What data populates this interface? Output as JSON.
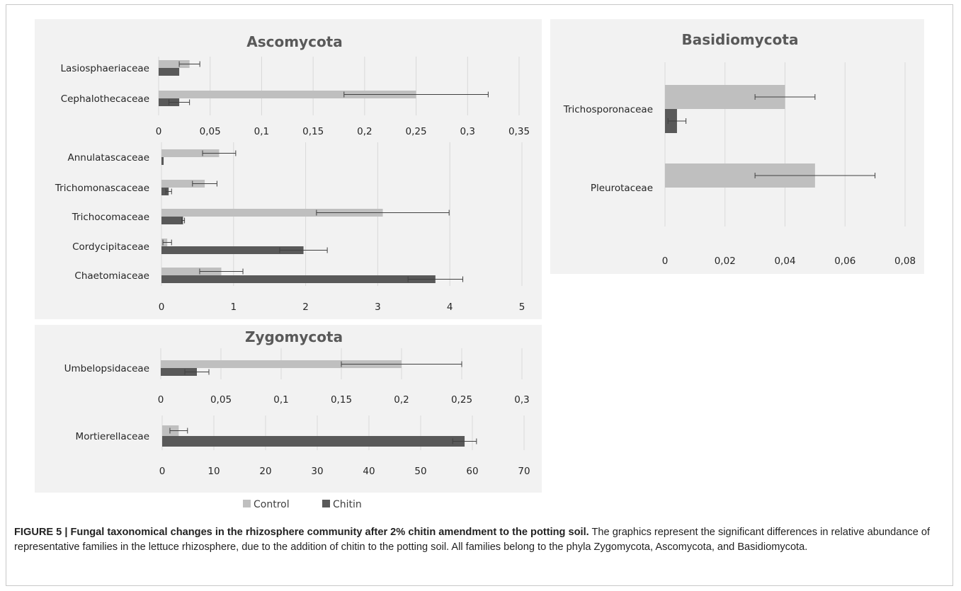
{
  "chart_data": [
    {
      "type": "bar",
      "orientation": "horizontal",
      "panel": "Ascomycota",
      "title": "Ascomycota",
      "categories": [
        "Lasiosphaeriaceae",
        "Cephalothecaceae"
      ],
      "series": [
        {
          "name": "Control",
          "values": [
            0.03,
            0.25
          ],
          "errors": [
            0.01,
            0.07
          ]
        },
        {
          "name": "Chitin",
          "values": [
            0.02,
            0.02
          ],
          "errors": [
            0.0,
            0.01
          ]
        }
      ],
      "xlim": [
        0,
        0.35
      ],
      "xticks": [
        "0",
        "0,05",
        "0,1",
        "0,15",
        "0,2",
        "0,25",
        "0,3",
        "0,35"
      ]
    },
    {
      "type": "bar",
      "orientation": "horizontal",
      "panel": "Ascomycota",
      "title": "",
      "categories": [
        "Annulatascaceae",
        "Trichomonascaceae",
        "Trichocomaceae",
        "Cordycipitaceae",
        "Chaetomiaceae"
      ],
      "series": [
        {
          "name": "Control",
          "values": [
            0.8,
            0.6,
            3.07,
            0.08,
            0.83
          ],
          "errors": [
            0.23,
            0.17,
            0.92,
            0.06,
            0.3
          ]
        },
        {
          "name": "Chitin",
          "values": [
            0.03,
            0.1,
            0.3,
            1.97,
            3.8
          ],
          "errors": [
            0.0,
            0.04,
            0.02,
            0.33,
            0.38
          ]
        }
      ],
      "xlim": [
        0,
        5
      ],
      "xticks": [
        "0",
        "1",
        "2",
        "3",
        "4",
        "5"
      ]
    },
    {
      "type": "bar",
      "orientation": "horizontal",
      "panel": "Basidiomycota",
      "title": "Basidiomycota",
      "categories": [
        "Trichosporonaceae",
        "Pleurotaceae"
      ],
      "series": [
        {
          "name": "Control",
          "values": [
            0.04,
            0.05
          ],
          "errors": [
            0.01,
            0.02
          ]
        },
        {
          "name": "Chitin",
          "values": [
            0.004,
            0.0
          ],
          "errors": [
            0.003,
            0.0
          ]
        }
      ],
      "xlim": [
        0,
        0.08
      ],
      "xticks": [
        "0",
        "0,02",
        "0,04",
        "0,06",
        "0,08"
      ]
    },
    {
      "type": "bar",
      "orientation": "horizontal",
      "panel": "Zygomycota",
      "title": "Zygomycota",
      "categories": [
        "Umbelopsidaceae"
      ],
      "series": [
        {
          "name": "Control",
          "values": [
            0.2
          ],
          "errors": [
            0.05
          ]
        },
        {
          "name": "Chitin",
          "values": [
            0.03
          ],
          "errors": [
            0.01
          ]
        }
      ],
      "xlim": [
        0,
        0.3
      ],
      "xticks": [
        "0",
        "0,05",
        "0,1",
        "0,15",
        "0,2",
        "0,25",
        "0,3"
      ]
    },
    {
      "type": "bar",
      "orientation": "horizontal",
      "panel": "Zygomycota",
      "title": "",
      "categories": [
        "Mortierellaceae"
      ],
      "series": [
        {
          "name": "Control",
          "values": [
            3.2
          ],
          "errors": [
            1.7
          ]
        },
        {
          "name": "Chitin",
          "values": [
            58.5
          ],
          "errors": [
            2.3
          ]
        }
      ],
      "xlim": [
        0,
        70
      ],
      "xticks": [
        "0",
        "10",
        "20",
        "30",
        "40",
        "50",
        "60",
        "70"
      ]
    }
  ],
  "legend": {
    "placement": "bottom",
    "items": [
      {
        "label": "Control",
        "color": "#bfbfbf"
      },
      {
        "label": "Chitin",
        "color": "#595959"
      }
    ]
  },
  "colors": {
    "control": "#bfbfbf",
    "chitin": "#595959",
    "panel_bg": "#f2f2f2"
  },
  "caption": {
    "title": "FIGURE 5 | Fungal taxonomical changes in the rhizosphere community after 2% chitin amendment to the potting soil.",
    "body": " The graphics represent the significant differences in relative abundance of representative families in the lettuce rhizosphere, due to the addition of chitin to the potting soil. All families belong to the phyla Zygomycota, Ascomycota, and Basidiomycota."
  }
}
